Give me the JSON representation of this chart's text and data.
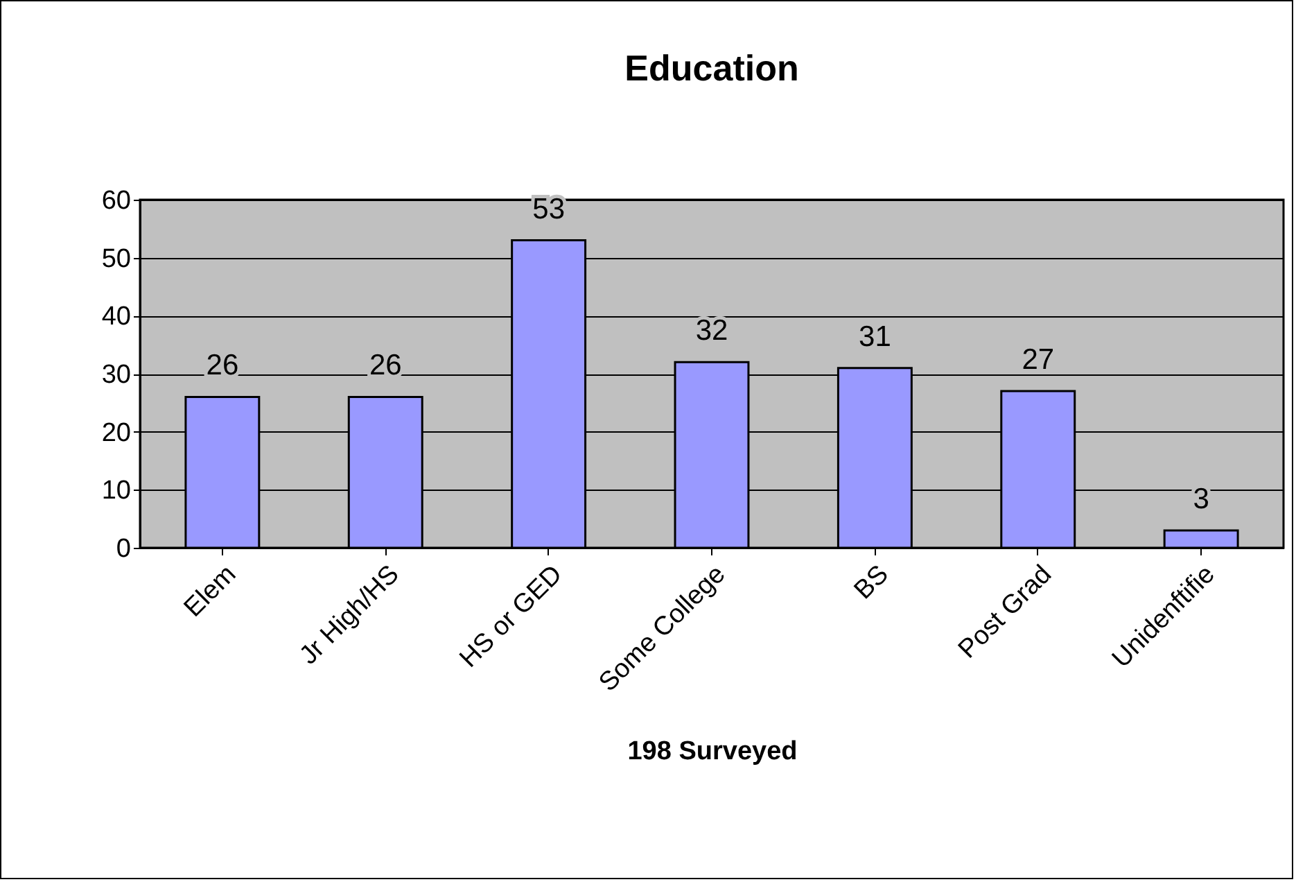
{
  "chart_data": {
    "type": "bar",
    "title": "Education",
    "xlabel": "198 Surveyed",
    "categories": [
      "Elem",
      "Jr High/HS",
      "HS or GED",
      "Some College",
      "BS",
      "Post Grad",
      "Unidenftifie"
    ],
    "values": [
      26,
      26,
      53,
      32,
      31,
      27,
      3
    ],
    "color": "#9999ff",
    "ylim": [
      0,
      60
    ],
    "yticks": [
      0,
      10,
      20,
      30,
      40,
      50,
      60
    ],
    "grid": "y",
    "data_labels": true
  }
}
